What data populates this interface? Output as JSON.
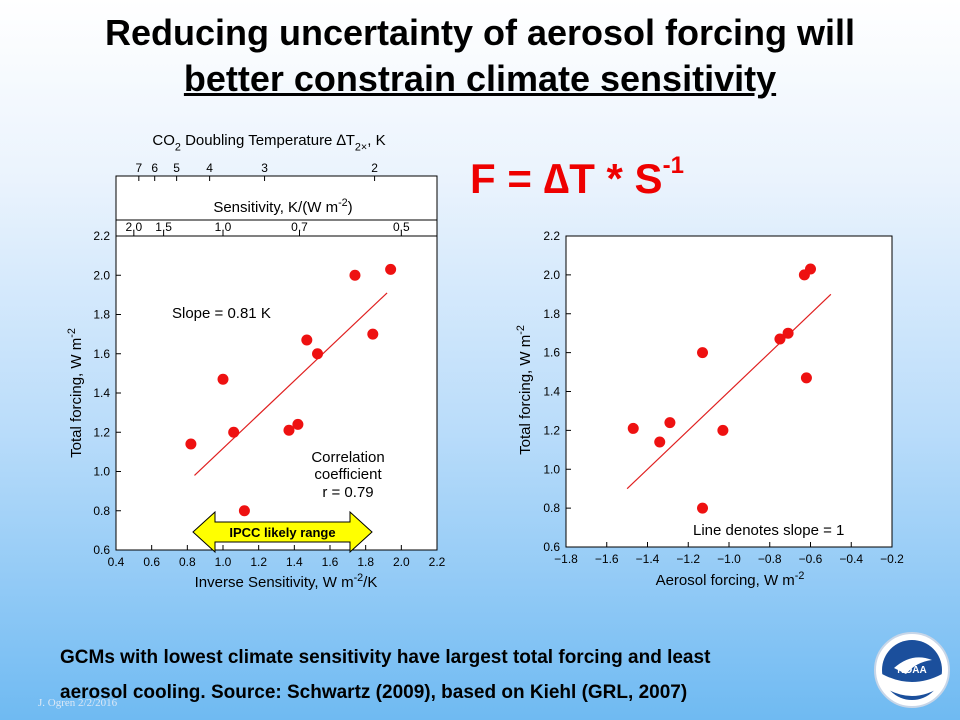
{
  "title": {
    "line1": "Reducing uncertainty of aerosol forcing will",
    "line2": "better constrain climate sensitivity"
  },
  "formula": {
    "main": "F = ∆T * S",
    "exponent": "-1"
  },
  "footer": {
    "line1": "GCMs with lowest climate sensitivity have largest total forcing and least",
    "line2": "aerosol cooling.  Source: Schwartz (2009), based on Kiehl (GRL, 2007)"
  },
  "credit": "J. Ogren  2/2/2016",
  "logo_text": "NOAA",
  "colors": {
    "points": "#ee1111",
    "line": "#e02020",
    "arrow_fill": "#ffff00",
    "formula": "#ee0000"
  },
  "chart_data": [
    {
      "type": "scatter",
      "xlabel": "Inverse Sensitivity, W m-2/K",
      "ylabel": "Total forcing, W m-2",
      "xlim": [
        0.4,
        2.2
      ],
      "ylim": [
        0.6,
        2.2
      ],
      "x_ticks": [
        "0.4",
        "0.6",
        "0.8",
        "1.0",
        "1.2",
        "1.4",
        "1.6",
        "1.8",
        "2.0",
        "2.2"
      ],
      "y_ticks": [
        "0.6",
        "0.8",
        "1.0",
        "1.2",
        "1.4",
        "1.6",
        "1.8",
        "2.0",
        "2.2"
      ],
      "top_axis_1": {
        "label": "CO2 Doubling Temperature ∆T2×, K",
        "ticks": [
          {
            "label": "7",
            "x": 0.528
          },
          {
            "label": "6",
            "x": 0.617
          },
          {
            "label": "5",
            "x": 0.74
          },
          {
            "label": "4",
            "x": 0.925
          },
          {
            "label": "3",
            "x": 1.233
          },
          {
            "label": "2",
            "x": 1.85
          }
        ]
      },
      "top_axis_2": {
        "label": "Sensitivity, K/(W m-2)",
        "ticks": [
          {
            "label": "2.0",
            "x": 0.5
          },
          {
            "label": "1.5",
            "x": 0.667
          },
          {
            "label": "1.0",
            "x": 1.0
          },
          {
            "label": "0.7",
            "x": 1.429
          },
          {
            "label": "0.5",
            "x": 2.0
          }
        ]
      },
      "points": [
        {
          "x": 0.82,
          "y": 1.14
        },
        {
          "x": 1.0,
          "y": 1.47
        },
        {
          "x": 1.06,
          "y": 1.2
        },
        {
          "x": 1.12,
          "y": 0.8
        },
        {
          "x": 1.37,
          "y": 1.21
        },
        {
          "x": 1.42,
          "y": 1.24
        },
        {
          "x": 1.47,
          "y": 1.67
        },
        {
          "x": 1.53,
          "y": 1.6
        },
        {
          "x": 1.74,
          "y": 2.0
        },
        {
          "x": 1.84,
          "y": 1.7
        },
        {
          "x": 1.94,
          "y": 2.03
        }
      ],
      "fit_line": [
        {
          "x": 0.84,
          "y": 0.98
        },
        {
          "x": 1.92,
          "y": 1.91
        }
      ],
      "annotations": {
        "slope": "Slope = 0.81 K",
        "corr1": "Correlation",
        "corr2": "coefficient",
        "corr3": "r = 0.79",
        "ipcc": "IPCC likely range"
      },
      "ipcc_range": [
        0.82,
        1.85
      ]
    },
    {
      "type": "scatter",
      "xlabel": "Aerosol forcing, W m-2",
      "ylabel": "Total forcing, W m-2",
      "xlim": [
        -1.8,
        -0.2
      ],
      "ylim": [
        0.6,
        2.2
      ],
      "x_ticks": [
        "−1.8",
        "−1.6",
        "−1.4",
        "−1.2",
        "−1.0",
        "−0.8",
        "−0.6",
        "−0.4",
        "−0.2"
      ],
      "y_ticks": [
        "0.6",
        "0.8",
        "1.0",
        "1.2",
        "1.4",
        "1.6",
        "1.8",
        "2.0",
        "2.2"
      ],
      "points": [
        {
          "x": -1.47,
          "y": 1.21
        },
        {
          "x": -1.34,
          "y": 1.14
        },
        {
          "x": -1.29,
          "y": 1.24
        },
        {
          "x": -1.13,
          "y": 1.6
        },
        {
          "x": -1.13,
          "y": 0.8
        },
        {
          "x": -1.03,
          "y": 1.2
        },
        {
          "x": -0.75,
          "y": 1.67
        },
        {
          "x": -0.71,
          "y": 1.7
        },
        {
          "x": -0.63,
          "y": 2.0
        },
        {
          "x": -0.6,
          "y": 2.03
        },
        {
          "x": -0.62,
          "y": 1.47
        }
      ],
      "fit_line": [
        {
          "x": -1.5,
          "y": 0.9
        },
        {
          "x": -0.5,
          "y": 1.9
        }
      ],
      "annotations": {
        "slope_note": "Line denotes slope = 1"
      }
    }
  ]
}
